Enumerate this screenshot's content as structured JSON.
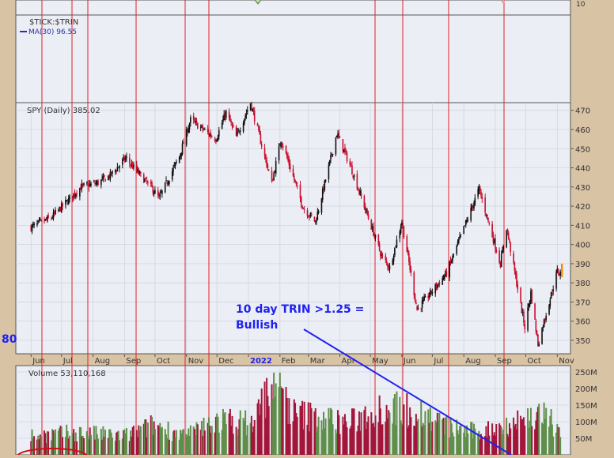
{
  "top_panel": {
    "title": "$TICK:$TRIN",
    "ma_label": "MA(30) 96.55",
    "axis_tick": "10",
    "side_number": "80"
  },
  "annotation": {
    "line1": "10 day TRIN >1.25 =",
    "line2": "Bullish"
  },
  "chart_data": [
    {
      "type": "candlestick",
      "title": "SPY (Daily) 385.02",
      "ylim": [
        343,
        474
      ],
      "y_ticks": [
        350,
        360,
        370,
        380,
        390,
        400,
        410,
        420,
        430,
        440,
        450,
        460,
        470
      ],
      "x_tick_labels": [
        "Jun",
        "Jul",
        "Aug",
        "Sep",
        "Oct",
        "Nov",
        "Dec",
        "2022",
        "Feb",
        "Mar",
        "Apr",
        "May",
        "Jun",
        "Jul",
        "Aug",
        "Sep",
        "Oct",
        "Nov"
      ],
      "price_path": [
        {
          "date": "2021-06-01",
          "value": 409
        },
        {
          "date": "2021-06-21",
          "value": 414
        },
        {
          "date": "2021-07-20",
          "value": 430
        },
        {
          "date": "2021-08-05",
          "value": 432
        },
        {
          "date": "2021-08-18",
          "value": 436
        },
        {
          "date": "2021-09-02",
          "value": 445
        },
        {
          "date": "2021-09-30",
          "value": 428
        },
        {
          "date": "2021-10-05",
          "value": 424
        },
        {
          "date": "2021-10-25",
          "value": 446
        },
        {
          "date": "2021-11-05",
          "value": 465
        },
        {
          "date": "2021-11-30",
          "value": 455
        },
        {
          "date": "2021-12-10",
          "value": 469
        },
        {
          "date": "2021-12-20",
          "value": 456
        },
        {
          "date": "2022-01-03",
          "value": 474
        },
        {
          "date": "2022-01-24",
          "value": 432
        },
        {
          "date": "2022-02-02",
          "value": 455
        },
        {
          "date": "2022-02-24",
          "value": 419
        },
        {
          "date": "2022-03-08",
          "value": 412
        },
        {
          "date": "2022-03-29",
          "value": 458
        },
        {
          "date": "2022-04-12",
          "value": 440
        },
        {
          "date": "2022-05-12",
          "value": 394
        },
        {
          "date": "2022-05-20",
          "value": 388
        },
        {
          "date": "2022-06-01",
          "value": 412
        },
        {
          "date": "2022-06-16",
          "value": 366
        },
        {
          "date": "2022-07-15",
          "value": 385
        },
        {
          "date": "2022-08-16",
          "value": 429
        },
        {
          "date": "2022-09-06",
          "value": 390
        },
        {
          "date": "2022-09-12",
          "value": 409
        },
        {
          "date": "2022-09-30",
          "value": 357
        },
        {
          "date": "2022-10-06",
          "value": 375
        },
        {
          "date": "2022-10-13",
          "value": 348
        },
        {
          "date": "2022-11-01",
          "value": 386
        },
        {
          "date": "2022-11-04",
          "value": 385
        }
      ]
    },
    {
      "type": "bar",
      "title": "Volume 53,110,168",
      "ylim": [
        0,
        250
      ],
      "y_ticks": [
        "250M",
        "200M",
        "150M",
        "100M",
        "50M"
      ],
      "volume_path": [
        {
          "date": "2021-06-01",
          "value": 60
        },
        {
          "date": "2021-07-15",
          "value": 70
        },
        {
          "date": "2021-09-01",
          "value": 60
        },
        {
          "date": "2021-10-01",
          "value": 95
        },
        {
          "date": "2021-11-01",
          "value": 60
        },
        {
          "date": "2021-12-01",
          "value": 110
        },
        {
          "date": "2022-01-05",
          "value": 100
        },
        {
          "date": "2022-01-25",
          "value": 240
        },
        {
          "date": "2022-02-15",
          "value": 130
        },
        {
          "date": "2022-03-10",
          "value": 120
        },
        {
          "date": "2022-04-10",
          "value": 100
        },
        {
          "date": "2022-05-10",
          "value": 150
        },
        {
          "date": "2022-06-15",
          "value": 140
        },
        {
          "date": "2022-07-15",
          "value": 90
        },
        {
          "date": "2022-08-15",
          "value": 70
        },
        {
          "date": "2022-09-15",
          "value": 100
        },
        {
          "date": "2022-10-15",
          "value": 130
        },
        {
          "date": "2022-11-04",
          "value": 80
        }
      ]
    }
  ]
}
